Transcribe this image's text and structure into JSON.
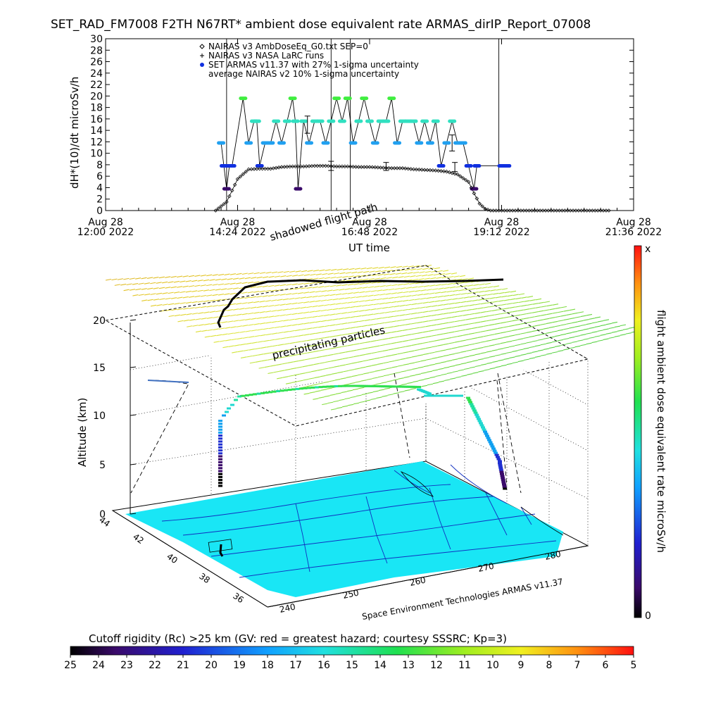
{
  "report_title": "SET_RAD_FM7008  F2TH N67RT* ambient dose equivalent rate ARMAS_dirIP_Report_07008",
  "chart_data": [
    {
      "type": "scatter",
      "ylabel": "dH*(10)/dt microSv/h",
      "xlabel": "UT time",
      "ylim": [
        0,
        30
      ],
      "yticks": [
        0,
        2,
        4,
        6,
        8,
        10,
        12,
        14,
        16,
        18,
        20,
        22,
        24,
        26,
        28,
        30
      ],
      "xlim_hours": [
        12.0,
        21.6
      ],
      "xticks": [
        {
          "hour": 12.0,
          "date": "Aug 28",
          "time": "12:00 2022"
        },
        {
          "hour": 14.4,
          "date": "Aug 28",
          "time": "14:24 2022"
        },
        {
          "hour": 16.8,
          "date": "Aug 28",
          "time": "16:48 2022"
        },
        {
          "hour": 19.2,
          "date": "Aug 28",
          "time": "19:12 2022"
        },
        {
          "hour": 21.6,
          "date": "Aug 28",
          "time": "21:36 2022"
        }
      ],
      "legend": [
        {
          "symbol": "diamond",
          "label": "NAIRAS v3 AmbDoseEq_G0.txt SEP=0"
        },
        {
          "symbol": "plus",
          "label": "NAIRAS v3 NASA LaRC runs"
        },
        {
          "symbol": "dot",
          "label": "SET ARMAS v11.37 with 27% 1-sigma uncertainty"
        },
        {
          "symbol": "errorbar",
          "label": "average NAIRAS v2 10% 1-sigma uncertainty"
        }
      ],
      "legend_position": "top-left",
      "series": [
        {
          "name": "NAIRAS v3 AmbDoseEq_G0.txt SEP=0",
          "x": [
            14.0,
            14.2,
            14.4,
            14.6,
            14.8,
            15.0,
            15.2,
            15.4,
            15.6,
            15.8,
            16.0,
            16.2,
            16.4,
            16.6,
            16.8,
            17.0,
            17.2,
            17.4,
            17.6,
            17.8,
            18.0,
            18.2,
            18.4,
            18.6,
            18.7,
            18.8,
            18.9,
            19.0,
            19.2,
            19.6,
            20.0,
            20.4,
            20.8,
            21.2
          ],
          "y": [
            0,
            1.5,
            5.5,
            7.2,
            7.3,
            7.3,
            7.6,
            7.7,
            7.7,
            7.8,
            7.8,
            7.7,
            7.7,
            7.6,
            7.6,
            7.5,
            7.4,
            7.4,
            7.2,
            7.1,
            7.0,
            6.8,
            6.3,
            5.0,
            3.0,
            1.2,
            0.3,
            0,
            0,
            0,
            0,
            0,
            0,
            0
          ]
        },
        {
          "name": "SET ARMAS v11.37 with 27% 1-sigma uncertainty",
          "x": [
            14.1,
            14.15,
            14.2,
            14.25,
            14.3,
            14.5,
            14.6,
            14.7,
            14.75,
            14.8,
            14.9,
            15.0,
            15.1,
            15.2,
            15.3,
            15.4,
            15.45,
            15.5,
            15.6,
            15.7,
            15.8,
            15.9,
            16.0,
            16.1,
            16.2,
            16.3,
            16.4,
            16.5,
            16.6,
            16.7,
            16.8,
            16.9,
            17.0,
            17.1,
            17.2,
            17.3,
            17.4,
            17.5,
            17.6,
            17.7,
            17.8,
            17.9,
            18.0,
            18.1,
            18.2,
            18.3,
            18.4,
            18.5,
            18.6,
            18.7,
            18.75,
            19.2,
            19.3
          ],
          "y": [
            11.8,
            7.8,
            3.8,
            7.8,
            7.8,
            19.6,
            11.8,
            15.6,
            15.6,
            7.8,
            11.8,
            11.8,
            15.6,
            11.8,
            15.6,
            19.6,
            15.6,
            3.8,
            15.6,
            11.8,
            15.6,
            15.6,
            11.8,
            15.6,
            19.6,
            15.6,
            19.6,
            11.8,
            15.6,
            19.6,
            15.6,
            11.8,
            15.6,
            15.6,
            19.6,
            11.8,
            15.6,
            15.6,
            15.6,
            11.8,
            15.6,
            11.8,
            15.6,
            7.8,
            11.8,
            15.6,
            11.8,
            11.8,
            7.8,
            3.8,
            7.8,
            7.8,
            7.8
          ]
        }
      ],
      "errorbars": [
        {
          "x": 15.67,
          "y": 15.0,
          "low": 13.5,
          "high": 16.5
        },
        {
          "x": 16.1,
          "y": 7.8,
          "low": 7.0,
          "high": 8.6
        },
        {
          "x": 17.1,
          "y": 7.7,
          "low": 7.0,
          "high": 8.4
        },
        {
          "x": 18.3,
          "y": 11.8,
          "low": 10.4,
          "high": 13.2
        },
        {
          "x": 18.35,
          "y": 7.6,
          "low": 6.8,
          "high": 8.4
        }
      ],
      "spikes_hour": [
        14.2,
        16.1,
        16.45,
        19.15
      ]
    },
    {
      "type": "3d-flight-track",
      "title": "shadowed flight path",
      "zlabel": "Altitude (km)",
      "zticks": [
        0,
        5,
        10,
        15,
        20
      ],
      "lat_ticks": [
        44,
        42,
        40,
        38,
        36
      ],
      "lon_ticks": [
        240,
        250,
        260,
        270,
        280
      ],
      "annotations": [
        "shadowed flight path",
        "precipitating particles",
        "Space Environment Technologies ARMAS v11.37"
      ],
      "colorbar_label": "flight ambient dose equivalent rate microSv/h",
      "colorbar_ends": [
        "x",
        "0"
      ],
      "track_altitude_km": [
        0,
        2,
        4,
        6,
        8,
        10,
        11,
        12.5,
        13,
        13,
        13,
        12.8,
        12,
        12,
        11.5,
        10,
        8,
        6,
        5
      ],
      "track_rate_microSvh": [
        0.2,
        0.5,
        1,
        2,
        3,
        6,
        7,
        9,
        10,
        10,
        11,
        10,
        9,
        9,
        9,
        8,
        6,
        3,
        1
      ]
    }
  ],
  "colorbar": {
    "label": "Cutoff rigidity (Rc) >25 km (GV: red = greatest hazard; courtesy SSSRC; Kp=3)",
    "ticks": [
      "25",
      "24",
      "23",
      "22",
      "21",
      "20",
      "19",
      "18",
      "17",
      "16",
      "15",
      "14",
      "13",
      "12",
      "11",
      "10",
      "9",
      "8",
      "7",
      "6",
      "5"
    ]
  }
}
